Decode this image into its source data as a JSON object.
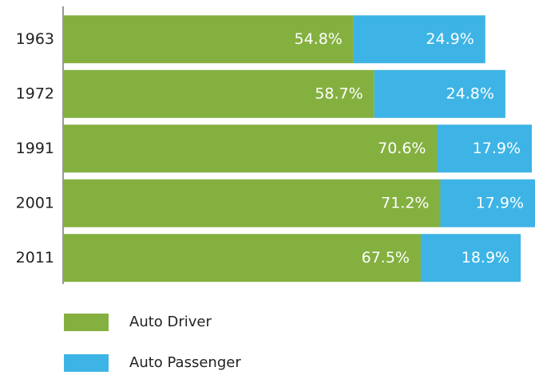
{
  "chart_data": {
    "type": "stacked-bar-horizontal",
    "categories": [
      "1963",
      "1972",
      "1991",
      "2001",
      "2011"
    ],
    "series": [
      {
        "name": "Auto Driver",
        "color": "#84b040",
        "values": [
          54.8,
          58.7,
          70.6,
          71.2,
          67.5
        ],
        "value_labels": [
          "54.8%",
          "58.7%",
          "70.6%",
          "71.2%",
          "67.5%"
        ]
      },
      {
        "name": "Auto Passenger",
        "color": "#3db4e5",
        "values": [
          24.9,
          24.8,
          17.9,
          17.9,
          18.9
        ],
        "value_labels": [
          "24.9%",
          "24.8%",
          "17.9%",
          "17.9%",
          "18.9%"
        ]
      }
    ]
  }
}
